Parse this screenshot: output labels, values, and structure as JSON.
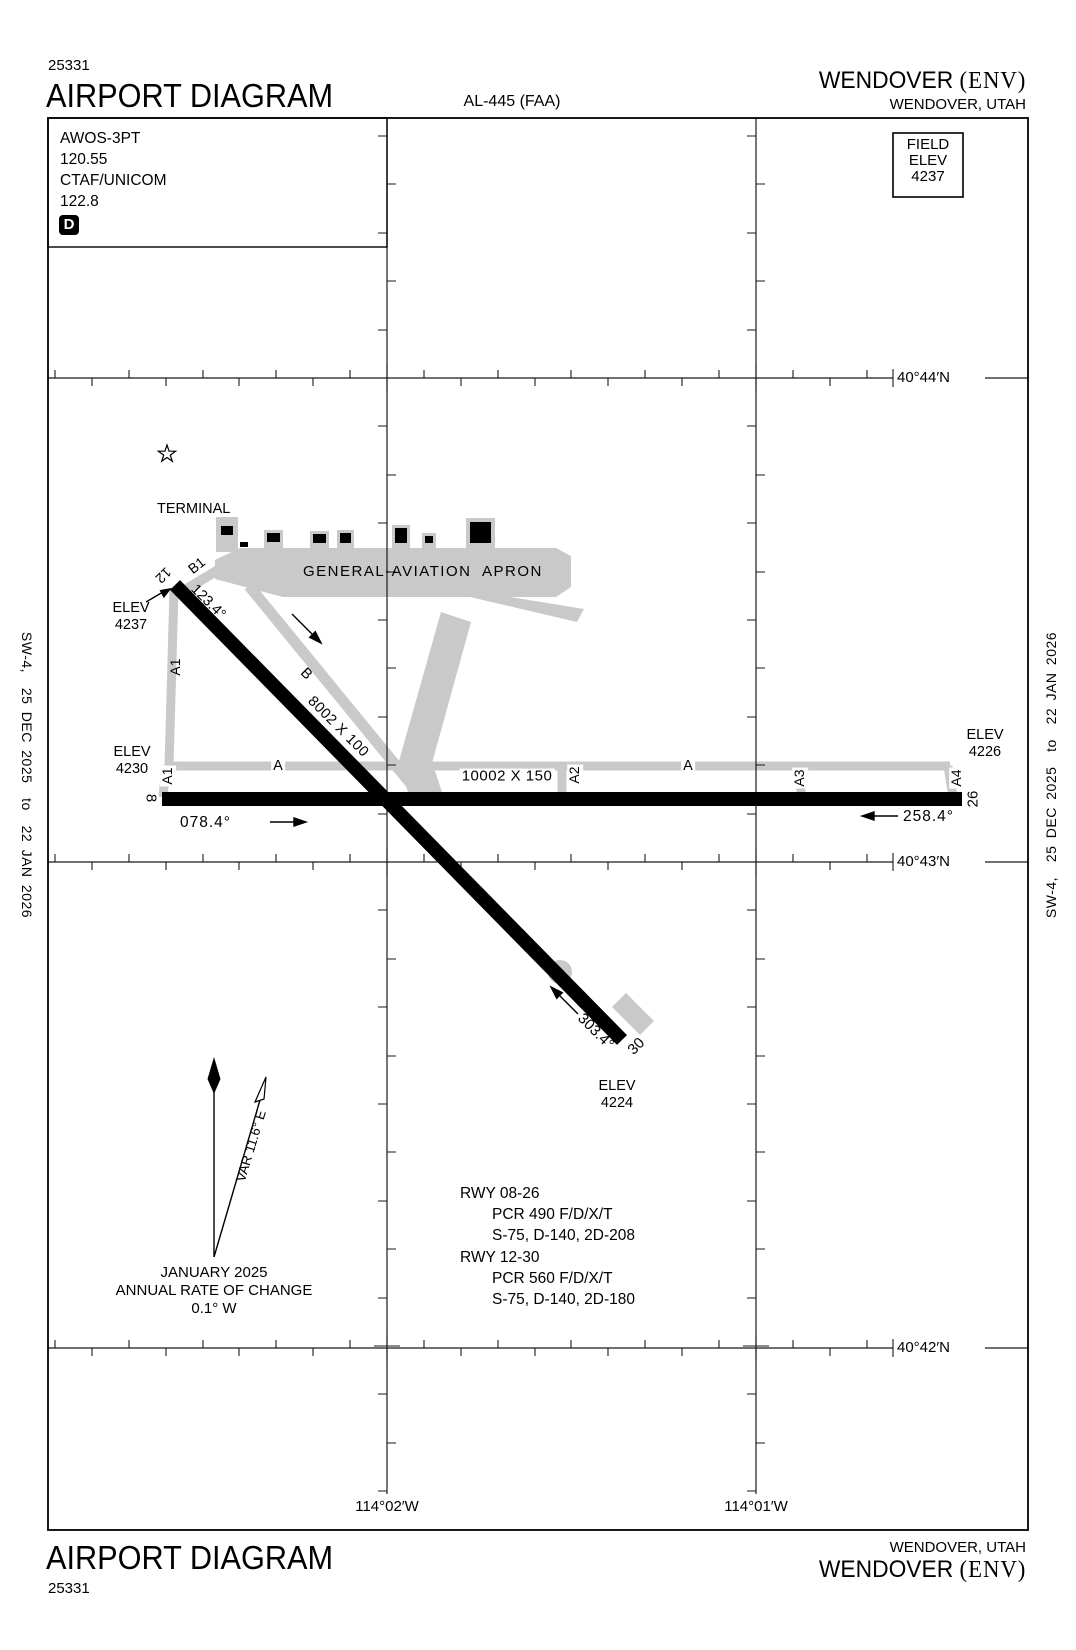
{
  "doc": {
    "chart_number": "25331",
    "title": "AIRPORT DIAGRAM",
    "chart_ref": "AL-445 (FAA)",
    "airport_name": "WENDOVER ",
    "airport_icao": "(ENV)",
    "city": "WENDOVER, UTAH",
    "edge_note": "SW-4,  25 DEC 2025  to  22 JAN 2026"
  },
  "comms": {
    "awos_label": "AWOS-3PT",
    "awos_freq": "120.55",
    "ctaf_label": "CTAF/UNICOM",
    "ctaf_freq": "122.8",
    "d_badge": "D"
  },
  "field_elev_box": {
    "line1": "FIELD",
    "line2": "ELEV",
    "line3": "4237"
  },
  "grid": {
    "lat": [
      "40°44′N",
      "40°43′N",
      "40°42′N"
    ],
    "lon": [
      "114°02′W",
      "114°01′W"
    ]
  },
  "airfield": {
    "terminal": "TERMINAL",
    "apron": "GENERAL-AVIATION  APRON",
    "rwy_08_26": {
      "low_id": "8",
      "high_id": "26",
      "dims": "10002 X 150",
      "low_hdg": "078.4°",
      "high_hdg": "258.4°",
      "elev_label": "ELEV",
      "low_elev": "4230",
      "high_elev": "4226"
    },
    "rwy_12_30": {
      "low_id": "12",
      "high_id": "30",
      "dims": "8002 X 100",
      "low_hdg": "123.4°",
      "high_hdg": "303.4°",
      "elev_label": "ELEV",
      "low_elev": "4237",
      "high_elev": "4224"
    },
    "taxiways": {
      "a": "A",
      "a1": "A1",
      "a2": "A2",
      "a3": "A3",
      "a4": "A4",
      "b": "B",
      "b1": "B1"
    }
  },
  "variation": {
    "var_label": "VAR 11.6° E",
    "date": "JANUARY 2025",
    "rate_label": "ANNUAL RATE OF CHANGE",
    "rate_value": "0.1° W"
  },
  "runway_data": {
    "r0826_title": "RWY 08-26",
    "r0826_pcr": "PCR 490 F/D/X/T",
    "r0826_codes": "S-75, D-140, 2D-208",
    "r1230_title": "RWY 12-30",
    "r1230_pcr": "PCR 560 F/D/X/T",
    "r1230_codes": "S-75, D-140, 2D-180"
  }
}
